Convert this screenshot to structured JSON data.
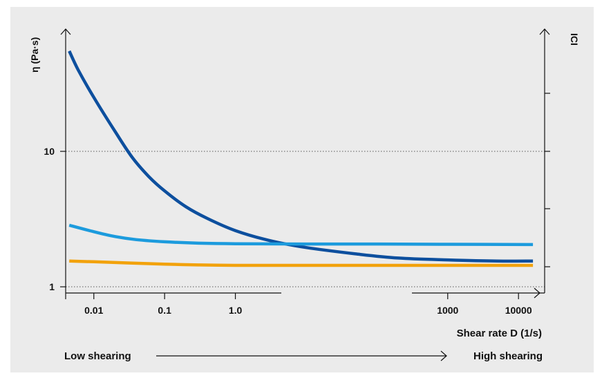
{
  "chart_data": {
    "type": "line",
    "ylabel_left": "η (Pa·s)",
    "ylabel_right": "ICI",
    "xlabel": "Shear rate D (1/s)",
    "x_scale": "log",
    "y_scale": "log",
    "xlim": [
      0.004,
      20000
    ],
    "ylim": [
      0.9,
      80
    ],
    "x_ticks": [
      {
        "value": 0.01,
        "label": "0.01"
      },
      {
        "value": 0.1,
        "label": "0.1"
      },
      {
        "value": 1.0,
        "label": "1.0"
      },
      {
        "value": 1000,
        "label": "1000"
      },
      {
        "value": 10000,
        "label": "10000"
      }
    ],
    "y_ticks": [
      {
        "value": 1,
        "label": "1"
      },
      {
        "value": 10,
        "label": "10"
      }
    ],
    "grid_y": [
      1,
      10
    ],
    "series": [
      {
        "color": "#0d4f9e",
        "x": [
          0.0045,
          0.006,
          0.01,
          0.02,
          0.035,
          0.06,
          0.1,
          0.2,
          0.4,
          1.0,
          3,
          10,
          50,
          200,
          1000,
          5000,
          16000
        ],
        "y": [
          55,
          40,
          25,
          14,
          9,
          6.5,
          5.1,
          3.9,
          3.2,
          2.6,
          2.2,
          1.95,
          1.75,
          1.63,
          1.58,
          1.55,
          1.55
        ]
      },
      {
        "color": "#1c9bdd",
        "x": [
          0.0045,
          0.01,
          0.02,
          0.04,
          0.1,
          0.3,
          1.0,
          10,
          100,
          1000,
          16000
        ],
        "y": [
          2.85,
          2.55,
          2.35,
          2.23,
          2.15,
          2.1,
          2.08,
          2.07,
          2.07,
          2.06,
          2.05
        ]
      },
      {
        "color": "#f2a20c",
        "x": [
          0.0045,
          0.01,
          0.03,
          0.1,
          0.3,
          1.0,
          10,
          100,
          1000,
          16000
        ],
        "y": [
          1.55,
          1.53,
          1.5,
          1.47,
          1.45,
          1.44,
          1.44,
          1.44,
          1.44,
          1.44
        ]
      }
    ]
  },
  "shearing": {
    "low_label": "Low shearing",
    "high_label": "High shearing"
  },
  "colors": {
    "background": "#ebebeb",
    "axis": "#111111",
    "grid": "#555555"
  }
}
